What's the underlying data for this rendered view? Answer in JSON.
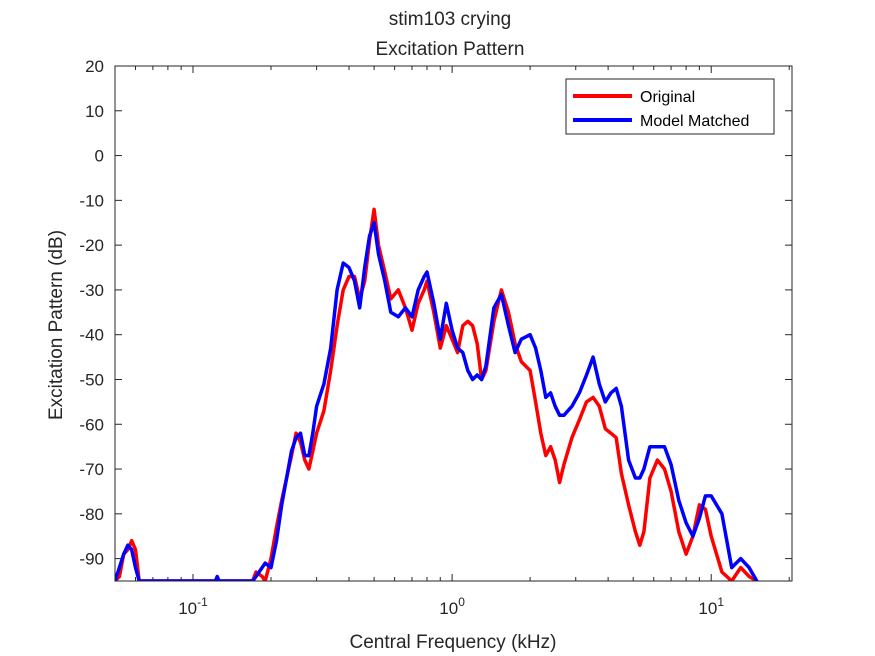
{
  "chart_data": {
    "type": "line",
    "title": "stim103 crying",
    "subtitle": "Excitation Pattern",
    "xlabel": "Central Frequency (kHz)",
    "ylabel": "Excitation Pattern (dB)",
    "xscale": "log",
    "xlim": [
      0.05,
      20.5
    ],
    "ylim": [
      -95,
      20
    ],
    "yticks": [
      20,
      10,
      0,
      -10,
      -20,
      -30,
      -40,
      -50,
      -60,
      -70,
      -80,
      -90
    ],
    "xticks": [
      {
        "value": 0.1,
        "base": "10",
        "exp": "-1"
      },
      {
        "value": 1,
        "base": "10",
        "exp": "0"
      },
      {
        "value": 10,
        "base": "10",
        "exp": "1"
      }
    ],
    "legend_position": "top-right",
    "grid": false,
    "series": [
      {
        "name": "Original",
        "color": "#ff0000",
        "points": [
          [
            0.05,
            -95
          ],
          [
            0.052,
            -94
          ],
          [
            0.054,
            -89
          ],
          [
            0.056,
            -88
          ],
          [
            0.058,
            -86
          ],
          [
            0.06,
            -88
          ],
          [
            0.062,
            -95
          ],
          [
            0.17,
            -95
          ],
          [
            0.175,
            -93
          ],
          [
            0.185,
            -94
          ],
          [
            0.19,
            -95
          ],
          [
            0.2,
            -90
          ],
          [
            0.21,
            -83
          ],
          [
            0.22,
            -77
          ],
          [
            0.24,
            -67
          ],
          [
            0.25,
            -62
          ],
          [
            0.26,
            -64
          ],
          [
            0.27,
            -68
          ],
          [
            0.28,
            -70
          ],
          [
            0.29,
            -66
          ],
          [
            0.3,
            -62
          ],
          [
            0.32,
            -57
          ],
          [
            0.34,
            -48
          ],
          [
            0.36,
            -38
          ],
          [
            0.38,
            -30
          ],
          [
            0.4,
            -27
          ],
          [
            0.42,
            -27
          ],
          [
            0.44,
            -32
          ],
          [
            0.46,
            -28
          ],
          [
            0.48,
            -19
          ],
          [
            0.5,
            -12
          ],
          [
            0.52,
            -20
          ],
          [
            0.55,
            -26
          ],
          [
            0.58,
            -32
          ],
          [
            0.62,
            -30
          ],
          [
            0.66,
            -34
          ],
          [
            0.7,
            -39
          ],
          [
            0.74,
            -33
          ],
          [
            0.78,
            -30
          ],
          [
            0.8,
            -28
          ],
          [
            0.85,
            -35
          ],
          [
            0.9,
            -43
          ],
          [
            0.95,
            -38
          ],
          [
            1.0,
            -41
          ],
          [
            1.05,
            -44
          ],
          [
            1.1,
            -38
          ],
          [
            1.15,
            -37
          ],
          [
            1.2,
            -38
          ],
          [
            1.25,
            -42
          ],
          [
            1.3,
            -50
          ],
          [
            1.35,
            -48
          ],
          [
            1.45,
            -37
          ],
          [
            1.55,
            -30
          ],
          [
            1.65,
            -35
          ],
          [
            1.75,
            -42
          ],
          [
            1.85,
            -46
          ],
          [
            2.0,
            -48
          ],
          [
            2.1,
            -55
          ],
          [
            2.2,
            -62
          ],
          [
            2.3,
            -67
          ],
          [
            2.4,
            -65
          ],
          [
            2.5,
            -68
          ],
          [
            2.6,
            -73
          ],
          [
            2.7,
            -69
          ],
          [
            2.9,
            -63
          ],
          [
            3.1,
            -59
          ],
          [
            3.3,
            -55
          ],
          [
            3.5,
            -54
          ],
          [
            3.7,
            -56
          ],
          [
            3.9,
            -61
          ],
          [
            4.1,
            -62
          ],
          [
            4.3,
            -63
          ],
          [
            4.5,
            -71
          ],
          [
            4.8,
            -78
          ],
          [
            5.1,
            -84
          ],
          [
            5.3,
            -87
          ],
          [
            5.5,
            -84
          ],
          [
            5.8,
            -72
          ],
          [
            6.2,
            -68
          ],
          [
            6.6,
            -70
          ],
          [
            7.0,
            -75
          ],
          [
            7.5,
            -84
          ],
          [
            8.0,
            -89
          ],
          [
            8.5,
            -85
          ],
          [
            9.0,
            -78
          ],
          [
            9.5,
            -79
          ],
          [
            10.0,
            -85
          ],
          [
            11.0,
            -93
          ],
          [
            12.0,
            -95
          ],
          [
            13.0,
            -92
          ],
          [
            14.0,
            -94
          ],
          [
            15.0,
            -95
          ]
        ]
      },
      {
        "name": "Model Matched",
        "color": "#0000ff",
        "points": [
          [
            0.05,
            -95
          ],
          [
            0.052,
            -92
          ],
          [
            0.054,
            -89
          ],
          [
            0.056,
            -87
          ],
          [
            0.058,
            -88
          ],
          [
            0.06,
            -92
          ],
          [
            0.062,
            -95
          ],
          [
            0.122,
            -95
          ],
          [
            0.124,
            -94
          ],
          [
            0.126,
            -95
          ],
          [
            0.17,
            -95
          ],
          [
            0.175,
            -94
          ],
          [
            0.18,
            -93
          ],
          [
            0.19,
            -91
          ],
          [
            0.2,
            -92
          ],
          [
            0.21,
            -86
          ],
          [
            0.22,
            -78
          ],
          [
            0.24,
            -66
          ],
          [
            0.25,
            -63
          ],
          [
            0.26,
            -62
          ],
          [
            0.27,
            -67
          ],
          [
            0.28,
            -67
          ],
          [
            0.29,
            -62
          ],
          [
            0.3,
            -56
          ],
          [
            0.32,
            -51
          ],
          [
            0.34,
            -43
          ],
          [
            0.36,
            -30
          ],
          [
            0.38,
            -24
          ],
          [
            0.4,
            -25
          ],
          [
            0.42,
            -28
          ],
          [
            0.44,
            -34
          ],
          [
            0.46,
            -25
          ],
          [
            0.48,
            -18
          ],
          [
            0.5,
            -15
          ],
          [
            0.52,
            -22
          ],
          [
            0.55,
            -28
          ],
          [
            0.58,
            -35
          ],
          [
            0.62,
            -36
          ],
          [
            0.66,
            -34
          ],
          [
            0.7,
            -36
          ],
          [
            0.74,
            -30
          ],
          [
            0.78,
            -27
          ],
          [
            0.8,
            -26
          ],
          [
            0.85,
            -33
          ],
          [
            0.9,
            -41
          ],
          [
            0.95,
            -33
          ],
          [
            1.0,
            -39
          ],
          [
            1.05,
            -43
          ],
          [
            1.1,
            -44
          ],
          [
            1.15,
            -48
          ],
          [
            1.2,
            -50
          ],
          [
            1.25,
            -49
          ],
          [
            1.3,
            -50
          ],
          [
            1.35,
            -47
          ],
          [
            1.45,
            -34
          ],
          [
            1.55,
            -31
          ],
          [
            1.65,
            -38
          ],
          [
            1.75,
            -44
          ],
          [
            1.85,
            -41
          ],
          [
            2.0,
            -40
          ],
          [
            2.1,
            -43
          ],
          [
            2.2,
            -48
          ],
          [
            2.3,
            -54
          ],
          [
            2.4,
            -53
          ],
          [
            2.5,
            -56
          ],
          [
            2.6,
            -58
          ],
          [
            2.7,
            -58
          ],
          [
            2.9,
            -56
          ],
          [
            3.1,
            -53
          ],
          [
            3.3,
            -49
          ],
          [
            3.5,
            -45
          ],
          [
            3.7,
            -51
          ],
          [
            3.9,
            -55
          ],
          [
            4.1,
            -53
          ],
          [
            4.3,
            -52
          ],
          [
            4.5,
            -56
          ],
          [
            4.8,
            -68
          ],
          [
            5.1,
            -72
          ],
          [
            5.3,
            -72
          ],
          [
            5.5,
            -70
          ],
          [
            5.8,
            -65
          ],
          [
            6.2,
            -65
          ],
          [
            6.6,
            -65
          ],
          [
            7.0,
            -69
          ],
          [
            7.5,
            -77
          ],
          [
            8.0,
            -82
          ],
          [
            8.5,
            -85
          ],
          [
            9.0,
            -81
          ],
          [
            9.5,
            -76
          ],
          [
            10.0,
            -76
          ],
          [
            11.0,
            -80
          ],
          [
            12.0,
            -92
          ],
          [
            13.0,
            -90
          ],
          [
            14.0,
            -92
          ],
          [
            15.0,
            -95
          ]
        ]
      }
    ]
  }
}
